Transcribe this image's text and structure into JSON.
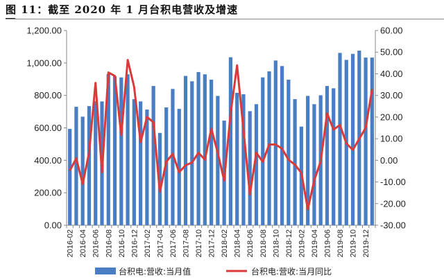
{
  "title": "图 11：截至 2020 年 1 月台积电营收及增速",
  "chart_data": {
    "type": "bar+line",
    "title": "图 11：截至 2020 年 1 月台积电营收及增速",
    "categories": [
      "2016-02",
      "2016-03",
      "2016-04",
      "2016-05",
      "2016-06",
      "2016-07",
      "2016-08",
      "2016-09",
      "2016-10",
      "2016-11",
      "2016-12",
      "2017-01",
      "2017-02",
      "2017-03",
      "2017-04",
      "2017-05",
      "2017-06",
      "2017-07",
      "2017-08",
      "2017-09",
      "2017-10",
      "2017-11",
      "2017-12",
      "2018-01",
      "2018-02",
      "2018-03",
      "2018-04",
      "2018-05",
      "2018-06",
      "2018-07",
      "2018-08",
      "2018-09",
      "2018-10",
      "2018-11",
      "2018-12",
      "2019-01",
      "2019-02",
      "2019-03",
      "2019-04",
      "2019-05",
      "2019-06",
      "2019-07",
      "2019-08",
      "2019-09",
      "2019-10",
      "2019-11",
      "2019-12",
      "2020-01"
    ],
    "x_tick_labels": [
      "2016-02",
      "2016-04",
      "2016-06",
      "2016-08",
      "2016-10",
      "2016-12",
      "2017-02",
      "2017-04",
      "2017-06",
      "2017-08",
      "2017-10",
      "2017-12",
      "2018-02",
      "2018-04",
      "2018-06",
      "2018-08",
      "2018-10",
      "2018-12",
      "2019-02",
      "2019-04",
      "2019-06",
      "2019-08",
      "2019-10",
      "2019-12"
    ],
    "series": [
      {
        "name": "台积电:营收:当月值",
        "type": "bar",
        "axis": "left",
        "color": "#4a7ec4",
        "values": [
          594,
          730,
          669,
          734,
          765,
          763,
          932,
          918,
          911,
          930,
          777,
          763,
          713,
          858,
          569,
          726,
          840,
          717,
          920,
          887,
          944,
          930,
          897,
          797,
          645,
          1035,
          816,
          807,
          703,
          746,
          911,
          948,
          1015,
          981,
          897,
          777,
          608,
          797,
          746,
          801,
          858,
          844,
          1062,
          1019,
          1056,
          1076,
          1033,
          1033
        ]
      },
      {
        "name": "台积电:营收:当月同比",
        "type": "line",
        "axis": "right",
        "color": "#d93a3a",
        "values": [
          -4.8,
          0.9,
          -10.9,
          3.5,
          35.8,
          -5.5,
          40.6,
          39.0,
          11.5,
          46.4,
          34.0,
          8.3,
          20.0,
          17.6,
          -14.6,
          -0.7,
          3.0,
          -5.5,
          -2.3,
          -1.0,
          3.5,
          0.3,
          14.6,
          3.5,
          -9.3,
          21.7,
          43.9,
          14.2,
          -15.7,
          3.5,
          -0.7,
          7.3,
          7.3,
          5.4,
          0.3,
          -2.0,
          -5.8,
          -22.6,
          -9.3,
          -0.5,
          21.7,
          14.2,
          16.3,
          7.8,
          4.8,
          9.9,
          15.0,
          32.9
        ]
      }
    ],
    "y_left": {
      "ylim": [
        0,
        1200
      ],
      "ticks": [
        "0.00",
        "200.00",
        "400.00",
        "600.00",
        "800.00",
        "1,000.00",
        "1,200.00"
      ]
    },
    "y_right": {
      "ylim": [
        -30,
        60
      ],
      "ticks": [
        "-30.00",
        "-20.00",
        "-10.00",
        "0.00",
        "10.00",
        "20.00",
        "30.00",
        "40.00",
        "50.00",
        "60.00"
      ]
    },
    "grid": false,
    "legend": "bottom"
  }
}
